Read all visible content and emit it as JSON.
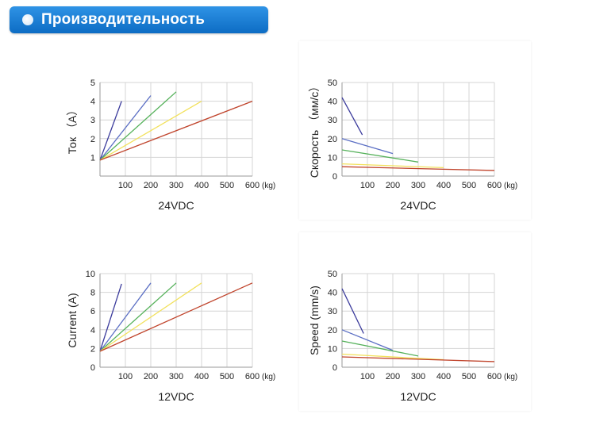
{
  "header": {
    "title": "Производительность",
    "icon": "bullet-icon"
  },
  "colors": {
    "purple": "#3b3b9c",
    "blue": "#5b6fc4",
    "green": "#55b15a",
    "yellow": "#f2e15c",
    "red": "#c0442c"
  },
  "chart_data": [
    {
      "type": "line",
      "ylabel": "Ток （A）",
      "caption": "24VDC",
      "xunit": "(kg)",
      "xticks": [
        100,
        200,
        300,
        400,
        500,
        600
      ],
      "yticks": [
        1,
        2,
        3,
        4,
        5
      ],
      "xlim": [
        0,
        600
      ],
      "ylim": [
        0,
        5
      ],
      "grid": true,
      "series": [
        {
          "color": "purple",
          "x": [
            0,
            85
          ],
          "y": [
            0.85,
            4.0
          ]
        },
        {
          "color": "blue",
          "x": [
            0,
            200
          ],
          "y": [
            0.85,
            4.3
          ]
        },
        {
          "color": "green",
          "x": [
            0,
            300
          ],
          "y": [
            0.85,
            4.5
          ]
        },
        {
          "color": "yellow",
          "x": [
            0,
            400
          ],
          "y": [
            0.85,
            4.0
          ]
        },
        {
          "color": "red",
          "x": [
            0,
            600
          ],
          "y": [
            0.85,
            4.0
          ]
        }
      ]
    },
    {
      "type": "line",
      "ylabel": "Скорость （мм/с）",
      "caption": "24VDC",
      "xunit": "(kg)",
      "xticks": [
        100,
        200,
        300,
        400,
        500,
        600
      ],
      "yticks": [
        0,
        10,
        20,
        30,
        40,
        50
      ],
      "xlim": [
        0,
        600
      ],
      "ylim": [
        0,
        50
      ],
      "grid": true,
      "series": [
        {
          "color": "purple",
          "x": [
            0,
            80
          ],
          "y": [
            42,
            22
          ]
        },
        {
          "color": "blue",
          "x": [
            0,
            200
          ],
          "y": [
            20,
            12
          ]
        },
        {
          "color": "green",
          "x": [
            0,
            300
          ],
          "y": [
            14,
            7.5
          ]
        },
        {
          "color": "yellow",
          "x": [
            0,
            400
          ],
          "y": [
            6.5,
            4.5
          ]
        },
        {
          "color": "red",
          "x": [
            0,
            600
          ],
          "y": [
            5,
            3
          ]
        }
      ]
    },
    {
      "type": "line",
      "ylabel": "Current (A)",
      "caption": "12VDC",
      "xunit": "(kg)",
      "xticks": [
        100,
        200,
        300,
        400,
        500,
        600
      ],
      "yticks": [
        0,
        2,
        4,
        6,
        8,
        10
      ],
      "xlim": [
        0,
        600
      ],
      "ylim": [
        0,
        10
      ],
      "grid": true,
      "series": [
        {
          "color": "purple",
          "x": [
            0,
            85
          ],
          "y": [
            1.7,
            8.9
          ]
        },
        {
          "color": "blue",
          "x": [
            0,
            200
          ],
          "y": [
            1.7,
            9.0
          ]
        },
        {
          "color": "green",
          "x": [
            0,
            300
          ],
          "y": [
            1.7,
            9.0
          ]
        },
        {
          "color": "yellow",
          "x": [
            0,
            400
          ],
          "y": [
            1.7,
            9.0
          ]
        },
        {
          "color": "red",
          "x": [
            0,
            600
          ],
          "y": [
            1.7,
            9.0
          ]
        }
      ]
    },
    {
      "type": "line",
      "ylabel": "Speed (mm/s)",
      "caption": "12VDC",
      "xunit": "(kg)",
      "xticks": [
        100,
        200,
        300,
        400,
        500,
        600
      ],
      "yticks": [
        0,
        10,
        20,
        30,
        40,
        50
      ],
      "xlim": [
        0,
        600
      ],
      "ylim": [
        0,
        50
      ],
      "grid": true,
      "series": [
        {
          "color": "purple",
          "x": [
            0,
            85
          ],
          "y": [
            42,
            18
          ]
        },
        {
          "color": "blue",
          "x": [
            0,
            200
          ],
          "y": [
            20,
            9
          ]
        },
        {
          "color": "green",
          "x": [
            0,
            300
          ],
          "y": [
            14,
            6
          ]
        },
        {
          "color": "yellow",
          "x": [
            0,
            400
          ],
          "y": [
            7,
            4
          ]
        },
        {
          "color": "red",
          "x": [
            0,
            600
          ],
          "y": [
            5.5,
            3
          ]
        }
      ]
    }
  ]
}
